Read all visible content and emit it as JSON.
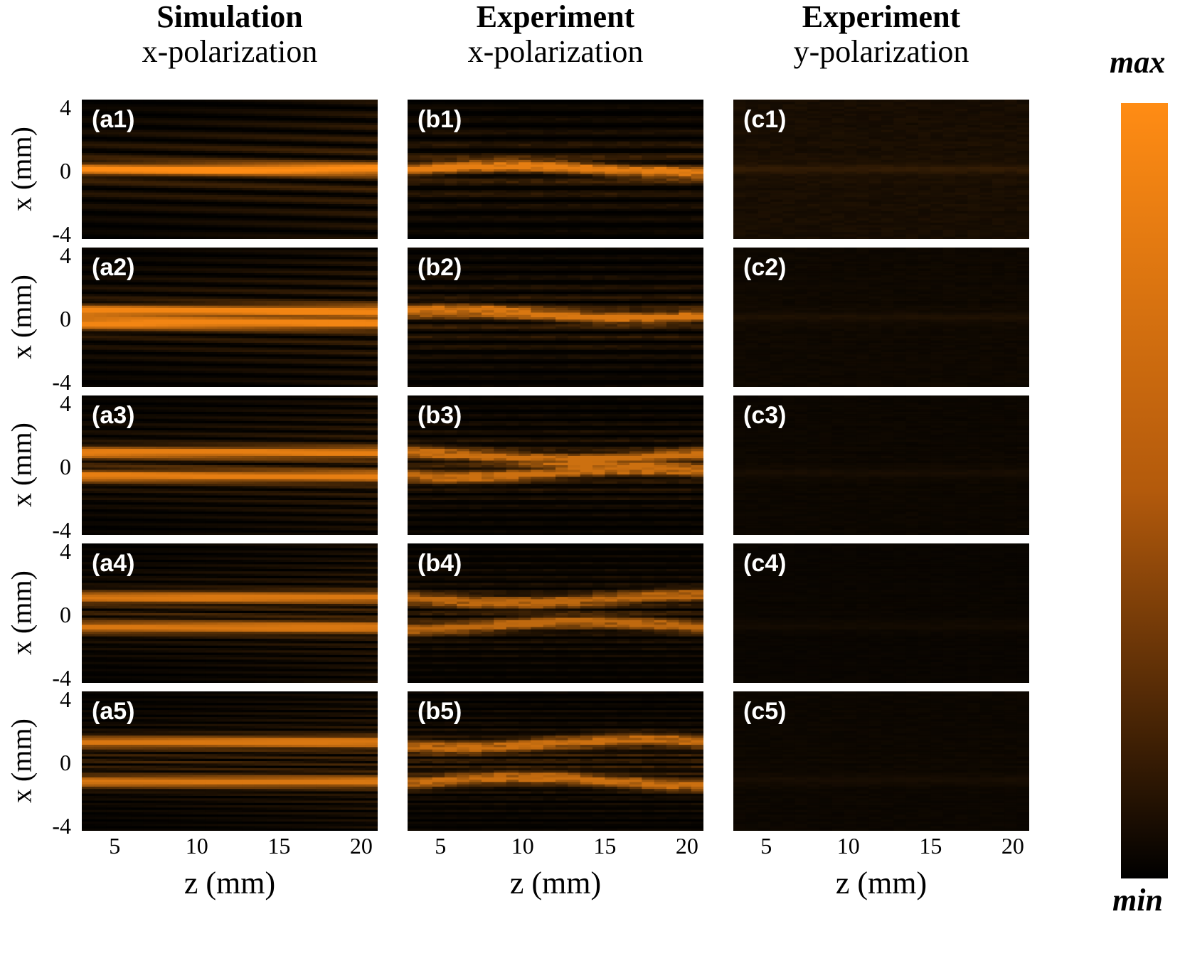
{
  "columns": [
    {
      "title": "Simulation",
      "subtitle": "x-polarization",
      "prefix": "a"
    },
    {
      "title": "Experiment",
      "subtitle": "x-polarization",
      "prefix": "b"
    },
    {
      "title": "Experiment",
      "subtitle": "y-polarization",
      "prefix": "c"
    }
  ],
  "panel_labels": [
    [
      "(a1)",
      "(a2)",
      "(a3)",
      "(a4)",
      "(a5)"
    ],
    [
      "(b1)",
      "(b2)",
      "(b3)",
      "(b4)",
      "(b5)"
    ],
    [
      "(c1)",
      "(c2)",
      "(c3)",
      "(c4)",
      "(c5)"
    ]
  ],
  "colorbar": {
    "max_label": "max",
    "min_label": "min",
    "colors": [
      "#ff8c14",
      "#000000"
    ]
  },
  "chart_data": {
    "type": "heatmap",
    "xlabel": "z (mm)",
    "ylabel": "x (mm)",
    "xticks": [
      "5",
      "10",
      "15",
      "20"
    ],
    "yticks": [
      "4",
      "0",
      "-4"
    ],
    "xlim": [
      3,
      21
    ],
    "ylim": [
      -4.4,
      4.4
    ],
    "panels": [
      {
        "label": "(a1)",
        "peak_x": [
          0
        ],
        "relative_intensity": 1.0
      },
      {
        "label": "(a2)",
        "peak_x": [
          0.4,
          -0.4
        ],
        "relative_intensity": 0.95
      },
      {
        "label": "(a3)",
        "peak_x": [
          0.8,
          -0.7
        ],
        "relative_intensity": 0.9
      },
      {
        "label": "(a4)",
        "peak_x": [
          1.0,
          -0.9
        ],
        "relative_intensity": 0.85
      },
      {
        "label": "(a5)",
        "peak_x": [
          1.2,
          -1.3
        ],
        "relative_intensity": 0.85
      },
      {
        "label": "(b1)",
        "peak_x": [
          0
        ],
        "relative_intensity": 0.9
      },
      {
        "label": "(b2)",
        "peak_x": [
          0.2
        ],
        "relative_intensity": 0.85
      },
      {
        "label": "(b3)",
        "peak_x": [
          0.6,
          -0.5
        ],
        "relative_intensity": 0.8
      },
      {
        "label": "(b4)",
        "peak_x": [
          0.9,
          -0.8
        ],
        "relative_intensity": 0.75
      },
      {
        "label": "(b5)",
        "peak_x": [
          1.1,
          -1.3
        ],
        "relative_intensity": 0.8
      },
      {
        "label": "(c1)",
        "peak_x": [
          0
        ],
        "relative_intensity": 0.2
      },
      {
        "label": "(c2)",
        "peak_x": [
          0
        ],
        "relative_intensity": 0.12
      },
      {
        "label": "(c3)",
        "peak_x": [
          -0.5
        ],
        "relative_intensity": 0.1
      },
      {
        "label": "(c4)",
        "peak_x": [
          -0.8
        ],
        "relative_intensity": 0.08
      },
      {
        "label": "(c5)",
        "peak_x": [
          -1.2
        ],
        "relative_intensity": 0.1
      }
    ]
  }
}
